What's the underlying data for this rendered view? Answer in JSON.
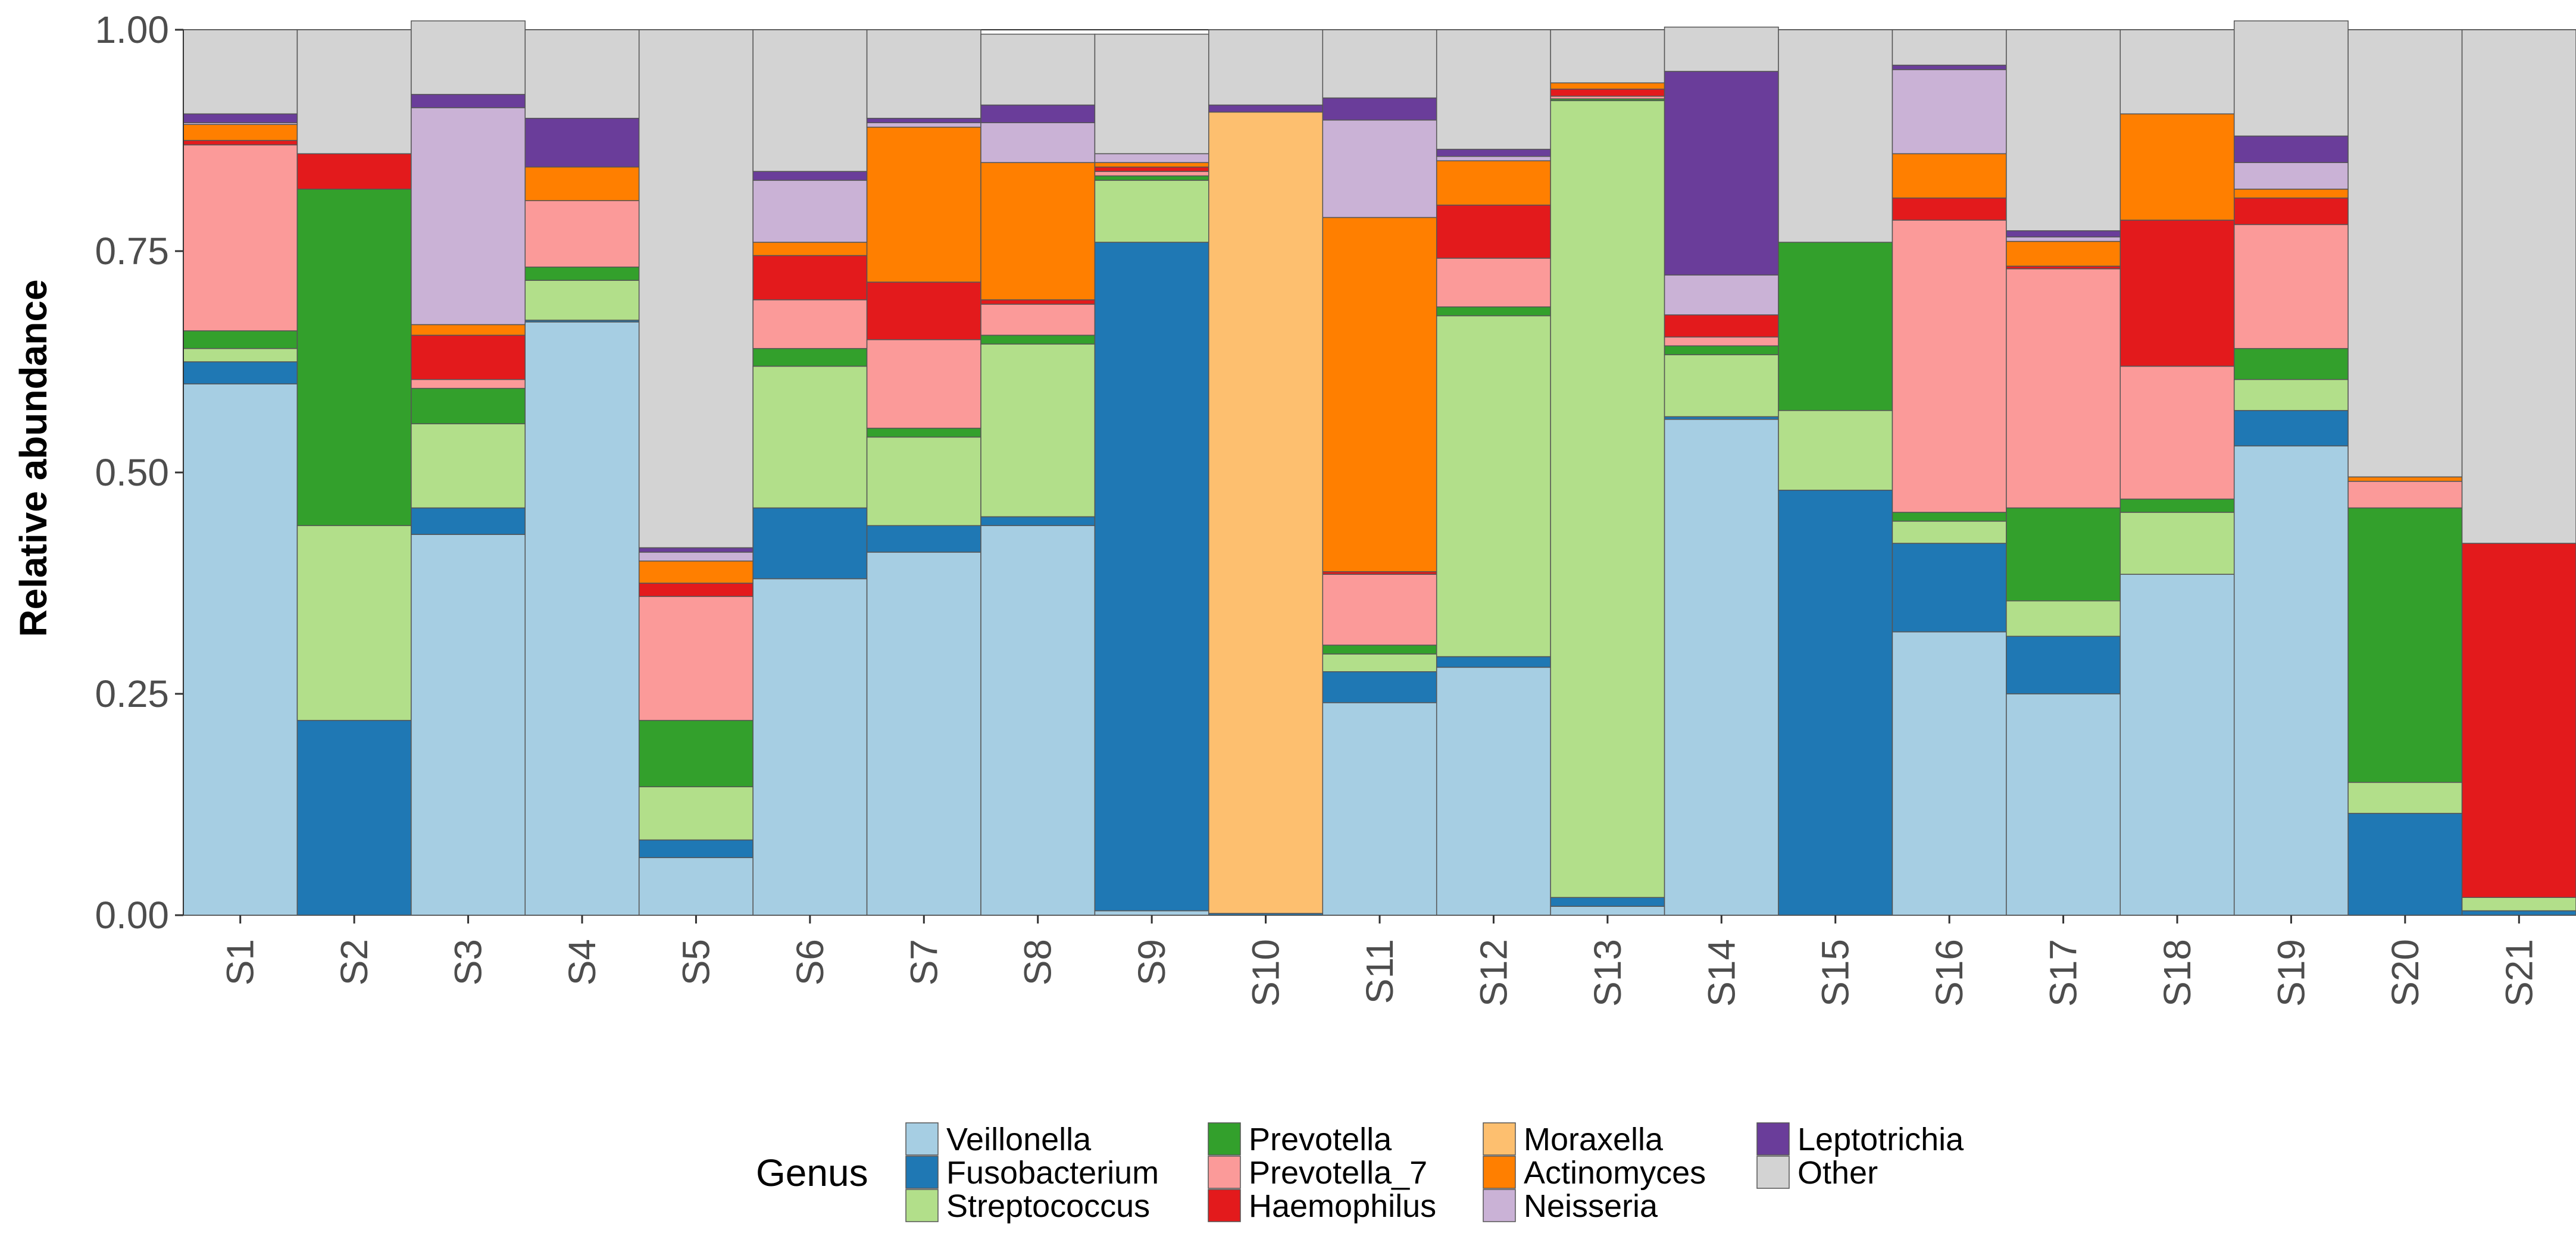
{
  "chart_data": {
    "type": "bar",
    "stacked": true,
    "title": "",
    "xlabel": "",
    "ylabel": "Relative abundance",
    "ylim": [
      0,
      1
    ],
    "yticks": [
      "0.00",
      "0.25",
      "0.50",
      "0.75",
      "1.00"
    ],
    "grid": false,
    "legend_title": "Genus",
    "legend_position": "bottom",
    "categories": [
      "S1",
      "S2",
      "S3",
      "S4",
      "S5",
      "S6",
      "S7",
      "S8",
      "S9",
      "S10",
      "S11",
      "S12",
      "S13",
      "S14",
      "S15",
      "S16",
      "S17",
      "S18",
      "S19",
      "S20",
      "S21"
    ],
    "series": [
      {
        "name": "Veillonella",
        "color": "#a6cee3",
        "values": [
          0.6,
          0.0,
          0.43,
          0.67,
          0.065,
          0.38,
          0.41,
          0.44,
          0.005,
          0.0,
          0.24,
          0.28,
          0.01,
          0.56,
          0.0,
          0.32,
          0.25,
          0.385,
          0.53,
          0.0,
          0.0
        ]
      },
      {
        "name": "Fusobacterium",
        "color": "#1f78b4",
        "values": [
          0.025,
          0.22,
          0.03,
          0.002,
          0.02,
          0.08,
          0.03,
          0.01,
          0.755,
          0.002,
          0.035,
          0.012,
          0.01,
          0.003,
          0.48,
          0.1,
          0.065,
          0.0,
          0.04,
          0.115,
          0.005
        ]
      },
      {
        "name": "Streptococcus",
        "color": "#b2df8a",
        "values": [
          0.015,
          0.22,
          0.095,
          0.045,
          0.06,
          0.16,
          0.1,
          0.195,
          0.07,
          0.0,
          0.02,
          0.385,
          0.9,
          0.07,
          0.09,
          0.025,
          0.04,
          0.07,
          0.035,
          0.035,
          0.015
        ]
      },
      {
        "name": "Prevotella",
        "color": "#33a02c",
        "values": [
          0.02,
          0.38,
          0.04,
          0.015,
          0.075,
          0.02,
          0.01,
          0.01,
          0.005,
          0.0,
          0.01,
          0.01,
          0.002,
          0.01,
          0.19,
          0.01,
          0.105,
          0.015,
          0.035,
          0.31,
          0.0
        ]
      },
      {
        "name": "Prevotella_7",
        "color": "#fb9a99",
        "values": [
          0.21,
          0.0,
          0.01,
          0.075,
          0.14,
          0.055,
          0.1,
          0.035,
          0.005,
          0.0,
          0.08,
          0.055,
          0.003,
          0.01,
          0.0,
          0.33,
          0.27,
          0.15,
          0.14,
          0.03,
          0.0
        ]
      },
      {
        "name": "Haemophilus",
        "color": "#e31a1c",
        "values": [
          0.005,
          0.04,
          0.05,
          0.0,
          0.015,
          0.05,
          0.065,
          0.005,
          0.005,
          0.0,
          0.003,
          0.06,
          0.008,
          0.025,
          0.0,
          0.025,
          0.003,
          0.165,
          0.03,
          0.0,
          0.4
        ]
      },
      {
        "name": "Moraxella",
        "color": "#fdbf6f",
        "values": [
          0.0,
          0.0,
          0.0,
          0.0,
          0.0,
          0.0,
          0.0,
          0.0,
          0.0,
          0.905,
          0.0,
          0.0,
          0.0,
          0.0,
          0.0,
          0.0,
          0.0,
          0.0,
          0.0,
          0.0,
          0.0
        ]
      },
      {
        "name": "Actinomyces",
        "color": "#ff7f00",
        "values": [
          0.018,
          0.0,
          0.012,
          0.038,
          0.025,
          0.015,
          0.175,
          0.155,
          0.005,
          0.0,
          0.4,
          0.05,
          0.007,
          0.0,
          0.0,
          0.05,
          0.028,
          0.12,
          0.01,
          0.005,
          0.0
        ]
      },
      {
        "name": "Neisseria",
        "color": "#cab2d6",
        "values": [
          0.002,
          0.0,
          0.245,
          0.0,
          0.01,
          0.07,
          0.005,
          0.045,
          0.01,
          0.0,
          0.11,
          0.005,
          0.0,
          0.045,
          0.0,
          0.095,
          0.005,
          0.0,
          0.03,
          0.0,
          0.0
        ]
      },
      {
        "name": "Leptotrichia",
        "color": "#6a3d9a",
        "values": [
          0.01,
          0.0,
          0.015,
          0.055,
          0.005,
          0.01,
          0.005,
          0.02,
          0.0,
          0.008,
          0.025,
          0.008,
          0.0,
          0.23,
          0.0,
          0.005,
          0.007,
          0.0,
          0.03,
          0.0,
          0.0
        ]
      },
      {
        "name": "Other",
        "color": "#d3d3d3",
        "values": [
          0.095,
          0.14,
          0.083,
          0.1,
          0.585,
          0.16,
          0.1,
          0.08,
          0.135,
          0.085,
          0.077,
          0.135,
          0.06,
          0.05,
          0.24,
          0.04,
          0.227,
          0.095,
          0.13,
          0.505,
          0.58
        ]
      }
    ]
  }
}
